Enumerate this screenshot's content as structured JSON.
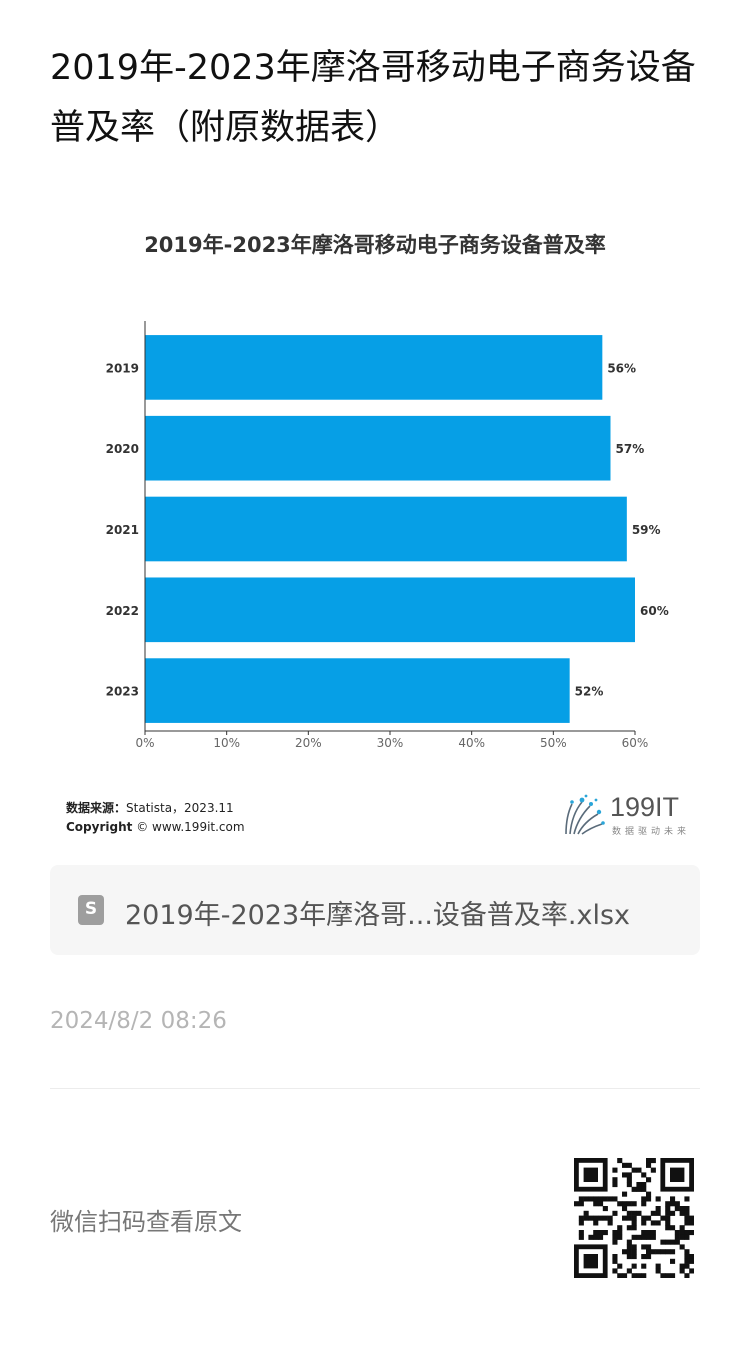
{
  "article": {
    "title": "2019年-2023年摩洛哥移动电子商务设备普及率（附原数据表）"
  },
  "chart_data": {
    "type": "bar",
    "orientation": "horizontal",
    "title": "2019年-2023年摩洛哥移动电子商务设备普及率",
    "categories": [
      "2019",
      "2020",
      "2021",
      "2022",
      "2023"
    ],
    "values": [
      56,
      57,
      59,
      60,
      52
    ],
    "data_labels": [
      "56%",
      "57%",
      "59%",
      "60%",
      "52%"
    ],
    "xlim": [
      0,
      60
    ],
    "x_ticks": [
      "0%",
      "10%",
      "20%",
      "30%",
      "40%",
      "50%",
      "60%"
    ],
    "xlabel": "",
    "ylabel": "",
    "grid": false,
    "bar_color": "#069fe6"
  },
  "source": {
    "label": "数据来源：",
    "value": "Statista，2023.11",
    "copyright_label": "Copyright",
    "copyright_value": "© www.199it.com"
  },
  "logo": {
    "text": "199IT",
    "subtitle": "数据驱动未来"
  },
  "attachment": {
    "icon": "spreadsheet-file-icon",
    "icon_letter": "S",
    "filename": "2019年-2023年摩洛哥...设备普及率.xlsx"
  },
  "timestamp": "2024/8/2 08:26",
  "qr": {
    "label": "微信扫码查看原文",
    "icon": "qr-code-icon"
  }
}
